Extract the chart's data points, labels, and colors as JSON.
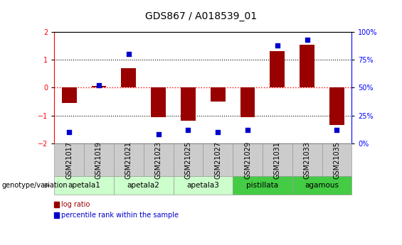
{
  "title": "GDS867 / A018539_01",
  "samples": [
    "GSM21017",
    "GSM21019",
    "GSM21021",
    "GSM21023",
    "GSM21025",
    "GSM21027",
    "GSM21029",
    "GSM21031",
    "GSM21033",
    "GSM21035"
  ],
  "log_ratio": [
    -0.55,
    0.05,
    0.7,
    -1.05,
    -1.2,
    -0.5,
    -1.05,
    1.3,
    1.55,
    -1.35
  ],
  "percentile_rank": [
    10,
    52,
    80,
    8,
    12,
    10,
    12,
    88,
    93,
    12
  ],
  "groups": [
    {
      "name": "apetala1",
      "samples": [
        0,
        1
      ],
      "color": "#ccffcc"
    },
    {
      "name": "apetala2",
      "samples": [
        2,
        3
      ],
      "color": "#ccffcc"
    },
    {
      "name": "apetala3",
      "samples": [
        4,
        5
      ],
      "color": "#ccffcc"
    },
    {
      "name": "pistillata",
      "samples": [
        6,
        7
      ],
      "color": "#44cc44"
    },
    {
      "name": "agamous",
      "samples": [
        8,
        9
      ],
      "color": "#44cc44"
    }
  ],
  "bar_color": "#990000",
  "dot_color": "#0000cc",
  "ylim_left": [
    -2,
    2
  ],
  "ylim_right": [
    0,
    100
  ],
  "yticks_left": [
    -2,
    -1,
    0,
    1,
    2
  ],
  "yticks_right": [
    0,
    25,
    50,
    75,
    100
  ],
  "yticklabels_right": [
    "0%",
    "25%",
    "50%",
    "75%",
    "100%"
  ],
  "hline_red": 0,
  "hlines_black": [
    -1,
    1
  ],
  "bar_width": 0.5,
  "dot_size": 25,
  "sample_row_color": "#cccccc",
  "sample_row_edge": "#999999",
  "title_fontsize": 10,
  "tick_fontsize": 7,
  "group_fontsize": 7.5,
  "legend_fontsize": 7,
  "genotype_label": "genotype/variation",
  "legend_red": "log ratio",
  "legend_blue": "percentile rank within the sample"
}
